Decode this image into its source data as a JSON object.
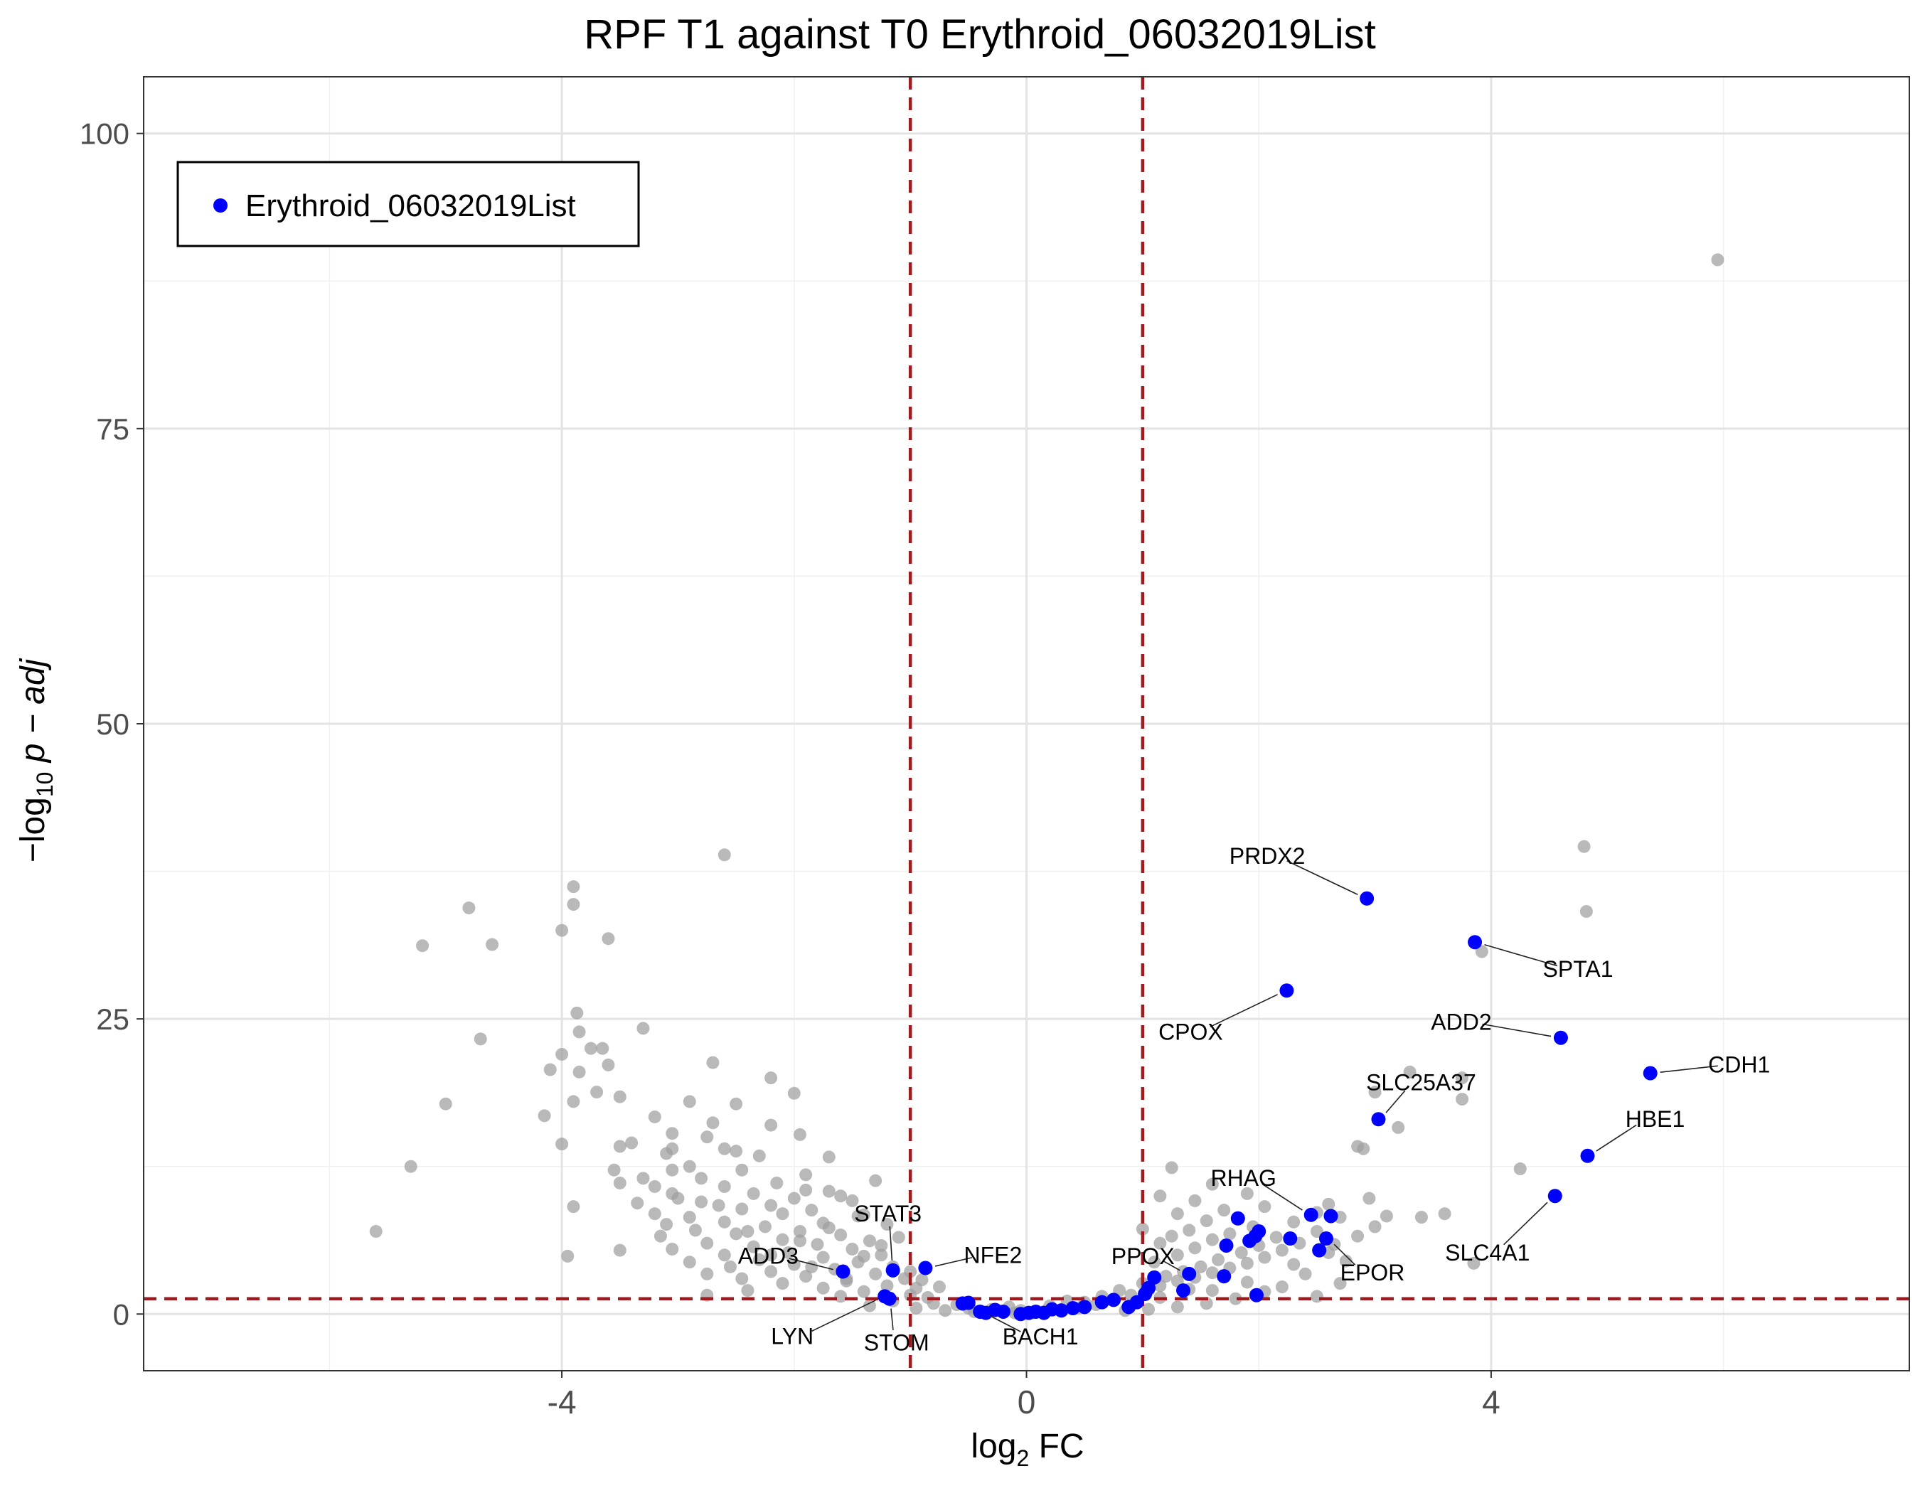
{
  "chart_data": {
    "type": "scatter",
    "title": "RPF T1 against T0 Erythroid_06032019List",
    "xlabel": {
      "main": "log",
      "sub": "2",
      "suffix": " FC"
    },
    "ylabel": {
      "prefix": "−log",
      "sub": "10",
      "mid": " p − ",
      "italic": "adj"
    },
    "xlim": [
      -7.6,
      7.6
    ],
    "ylim": [
      -4.8,
      104.8
    ],
    "x_ticks": [
      -4,
      0,
      4
    ],
    "x_tick_labels": [
      "-4",
      "0",
      "4"
    ],
    "y_ticks": [
      0,
      25,
      50,
      75,
      100
    ],
    "y_tick_labels": [
      "0",
      "25",
      "50",
      "75",
      "100"
    ],
    "grid": true,
    "thresholds": {
      "vertical": [
        -1,
        1
      ],
      "horizontal": 1.3,
      "color": "#9e1b1f"
    },
    "legend": {
      "position": "top-left",
      "entries": [
        {
          "label": "Erythroid_06032019List",
          "color": "#0000ff"
        }
      ]
    },
    "series": [
      {
        "role": "background",
        "color": "#9e9e9e",
        "points": [
          [
            5.95,
            89.3
          ],
          [
            -2.6,
            38.9
          ],
          [
            4.8,
            39.6
          ],
          [
            -3.9,
            36.2
          ],
          [
            -3.9,
            34.7
          ],
          [
            -4.8,
            34.4
          ],
          [
            -4.0,
            32.5
          ],
          [
            -3.6,
            31.8
          ],
          [
            -5.2,
            31.2
          ],
          [
            -4.6,
            31.3
          ],
          [
            4.82,
            34.1
          ],
          [
            3.92,
            30.7
          ],
          [
            -3.87,
            25.5
          ],
          [
            -3.3,
            24.2
          ],
          [
            -3.85,
            23.9
          ],
          [
            -4.7,
            23.3
          ],
          [
            -3.75,
            22.5
          ],
          [
            -3.65,
            22.5
          ],
          [
            -4.0,
            22.0
          ],
          [
            -3.6,
            21.1
          ],
          [
            -2.7,
            21.3
          ],
          [
            -3.85,
            20.5
          ],
          [
            -4.1,
            20.7
          ],
          [
            -3.7,
            18.8
          ],
          [
            -2.2,
            20.0
          ],
          [
            -3.5,
            18.4
          ],
          [
            -2.0,
            18.7
          ],
          [
            -3.9,
            18.0
          ],
          [
            -5.0,
            17.8
          ],
          [
            -2.9,
            18.0
          ],
          [
            -2.5,
            17.8
          ],
          [
            -4.15,
            16.8
          ],
          [
            -3.2,
            16.7
          ],
          [
            -2.7,
            16.2
          ],
          [
            -2.2,
            16.0
          ],
          [
            -3.05,
            15.3
          ],
          [
            -1.95,
            15.2
          ],
          [
            -2.75,
            15.0
          ],
          [
            -3.4,
            14.5
          ],
          [
            -3.05,
            14.0
          ],
          [
            -2.6,
            14.0
          ],
          [
            -4.0,
            14.4
          ],
          [
            -3.5,
            14.2
          ],
          [
            -2.5,
            13.8
          ],
          [
            -3.1,
            13.6
          ],
          [
            -1.7,
            13.3
          ],
          [
            -2.3,
            13.4
          ],
          [
            -3.05,
            12.2
          ],
          [
            -5.3,
            12.5
          ],
          [
            -2.45,
            12.2
          ],
          [
            -3.3,
            11.5
          ],
          [
            -1.9,
            11.8
          ],
          [
            -2.8,
            11.5
          ],
          [
            -3.5,
            11.1
          ],
          [
            -2.15,
            11.1
          ],
          [
            -1.3,
            11.3
          ],
          [
            -2.6,
            10.8
          ],
          [
            -1.9,
            10.5
          ],
          [
            -3.05,
            10.2
          ],
          [
            -2.35,
            10.2
          ],
          [
            -1.6,
            10.0
          ],
          [
            -2.0,
            9.8
          ],
          [
            -2.8,
            9.5
          ],
          [
            -3.35,
            9.4
          ],
          [
            -1.5,
            9.6
          ],
          [
            -3.9,
            9.1
          ],
          [
            -2.45,
            8.9
          ],
          [
            -1.85,
            8.8
          ],
          [
            -3.2,
            8.5
          ],
          [
            -2.1,
            8.5
          ],
          [
            -2.9,
            8.2
          ],
          [
            -1.45,
            8.3
          ],
          [
            -2.6,
            7.8
          ],
          [
            -1.75,
            7.7
          ],
          [
            -3.1,
            7.6
          ],
          [
            -2.25,
            7.4
          ],
          [
            -1.2,
            7.6
          ],
          [
            -2.85,
            7.1
          ],
          [
            -1.95,
            7.0
          ],
          [
            -5.6,
            7.0
          ],
          [
            -2.5,
            6.8
          ],
          [
            -1.6,
            6.7
          ],
          [
            -3.15,
            6.6
          ],
          [
            -2.1,
            6.3
          ],
          [
            -1.35,
            6.2
          ],
          [
            -2.75,
            6.0
          ],
          [
            -1.8,
            5.9
          ],
          [
            -2.35,
            5.7
          ],
          [
            -3.05,
            5.5
          ],
          [
            -1.5,
            5.5
          ],
          [
            -3.5,
            5.4
          ],
          [
            -2.05,
            5.2
          ],
          [
            -2.6,
            5.0
          ],
          [
            -3.95,
            4.9
          ],
          [
            -1.25,
            5.0
          ],
          [
            -1.75,
            4.8
          ],
          [
            -2.3,
            4.6
          ],
          [
            -2.9,
            4.4
          ],
          [
            -1.45,
            4.4
          ],
          [
            -2.0,
            4.2
          ],
          [
            -2.55,
            4.0
          ],
          [
            -1.15,
            4.0
          ],
          [
            -1.65,
            3.8
          ],
          [
            -2.2,
            3.6
          ],
          [
            -2.75,
            3.4
          ],
          [
            -1.3,
            3.4
          ],
          [
            -1.9,
            3.2
          ],
          [
            -2.45,
            3.0
          ],
          [
            -1.05,
            3.0
          ],
          [
            -1.55,
            2.8
          ],
          [
            -2.1,
            2.6
          ],
          [
            -1.2,
            2.4
          ],
          [
            -1.75,
            2.2
          ],
          [
            -2.4,
            2.0
          ],
          [
            -0.95,
            2.2
          ],
          [
            -1.4,
            1.9
          ],
          [
            -2.75,
            1.6
          ],
          [
            -1.0,
            1.6
          ],
          [
            -1.6,
            1.5
          ],
          [
            -0.85,
            1.4
          ],
          [
            -1.15,
            1.1
          ],
          [
            -0.8,
            0.9
          ],
          [
            -1.35,
            0.7
          ],
          [
            -0.6,
            0.8
          ],
          [
            -0.95,
            0.5
          ],
          [
            -0.5,
            0.5
          ],
          [
            -0.7,
            0.3
          ],
          [
            -0.3,
            0.4
          ],
          [
            -0.45,
            0.2
          ],
          [
            -0.2,
            0.15
          ],
          [
            -0.1,
            0.1
          ],
          [
            0.05,
            0.1
          ],
          [
            -0.05,
            0.3
          ],
          [
            0.15,
            0.2
          ],
          [
            -0.15,
            0.6
          ],
          [
            0.3,
            0.4
          ],
          [
            0.45,
            0.5
          ],
          [
            0.2,
            0.7
          ],
          [
            0.6,
            0.8
          ],
          [
            0.5,
            1.0
          ],
          [
            0.75,
            1.2
          ],
          [
            0.35,
            1.1
          ],
          [
            0.9,
            1.6
          ],
          [
            0.65,
            1.5
          ],
          [
            1.05,
            2.0
          ],
          [
            0.8,
            2.0
          ],
          [
            1.15,
            2.4
          ],
          [
            1.3,
            2.8
          ],
          [
            1.0,
            2.6
          ],
          [
            1.45,
            3.1
          ],
          [
            1.2,
            3.2
          ],
          [
            1.6,
            3.5
          ],
          [
            1.35,
            3.6
          ],
          [
            1.75,
            3.9
          ],
          [
            1.5,
            4.0
          ],
          [
            1.9,
            4.3
          ],
          [
            1.1,
            4.4
          ],
          [
            1.65,
            4.6
          ],
          [
            2.05,
            4.8
          ],
          [
            1.3,
            5.0
          ],
          [
            1.85,
            5.2
          ],
          [
            2.2,
            5.4
          ],
          [
            1.45,
            5.6
          ],
          [
            2.0,
            5.8
          ],
          [
            1.15,
            6.0
          ],
          [
            2.35,
            6.0
          ],
          [
            1.6,
            6.3
          ],
          [
            1.25,
            6.6
          ],
          [
            2.15,
            6.5
          ],
          [
            1.75,
            6.8
          ],
          [
            1.4,
            7.1
          ],
          [
            2.5,
            7.0
          ],
          [
            1.95,
            7.4
          ],
          [
            1.0,
            7.2
          ],
          [
            2.3,
            7.8
          ],
          [
            1.55,
            7.9
          ],
          [
            1.3,
            8.5
          ],
          [
            2.7,
            8.2
          ],
          [
            1.7,
            8.8
          ],
          [
            2.05,
            9.1
          ],
          [
            1.45,
            9.6
          ],
          [
            1.9,
            10.2
          ],
          [
            1.15,
            10.0
          ],
          [
            2.6,
            9.3
          ],
          [
            1.6,
            11.0
          ],
          [
            1.25,
            12.4
          ],
          [
            2.95,
            9.8
          ],
          [
            3.1,
            8.3
          ],
          [
            3.4,
            8.2
          ],
          [
            3.6,
            8.5
          ],
          [
            2.85,
            14.2
          ],
          [
            2.9,
            14.0
          ],
          [
            3.0,
            18.8
          ],
          [
            3.3,
            20.5
          ],
          [
            3.75,
            18.2
          ],
          [
            3.75,
            20.0
          ],
          [
            3.2,
            15.8
          ],
          [
            4.25,
            12.3
          ],
          [
            3.85,
            4.3
          ],
          [
            2.6,
            5.2
          ],
          [
            2.75,
            4.5
          ],
          [
            2.4,
            3.4
          ],
          [
            2.7,
            2.6
          ],
          [
            2.2,
            2.3
          ],
          [
            2.05,
            1.9
          ],
          [
            1.8,
            1.3
          ],
          [
            1.55,
            0.9
          ],
          [
            1.3,
            0.6
          ],
          [
            1.05,
            0.4
          ],
          [
            0.85,
            0.3
          ],
          [
            1.6,
            2.0
          ],
          [
            2.5,
            1.5
          ],
          [
            1.9,
            2.7
          ],
          [
            2.3,
            4.2
          ],
          [
            2.85,
            6.6
          ],
          [
            3.0,
            7.4
          ],
          [
            2.5,
            8.6
          ],
          [
            2.65,
            5.9
          ],
          [
            1.15,
            1.4
          ],
          [
            1.4,
            2.1
          ],
          [
            -0.9,
            2.9
          ],
          [
            -1.0,
            3.6
          ],
          [
            -0.75,
            2.3
          ],
          [
            -1.4,
            4.9
          ],
          [
            -1.25,
            5.8
          ],
          [
            -1.1,
            6.5
          ],
          [
            -1.55,
            3.0
          ],
          [
            -1.85,
            4.0
          ],
          [
            -2.2,
            5.0
          ],
          [
            -1.95,
            6.2
          ],
          [
            -2.4,
            7.0
          ],
          [
            -2.65,
            9.2
          ],
          [
            -3.0,
            9.8
          ],
          [
            -1.7,
            7.3
          ],
          [
            -1.4,
            8.4
          ],
          [
            -2.9,
            12.5
          ],
          [
            -1.7,
            10.4
          ],
          [
            -2.2,
            9.2
          ],
          [
            -3.2,
            10.8
          ],
          [
            -3.55,
            12.2
          ]
        ]
      },
      {
        "name": "Erythroid_06032019List",
        "color": "#0000ff",
        "points": [
          {
            "x": 2.93,
            "y": 35.2,
            "label": "PRDX2"
          },
          {
            "x": 3.86,
            "y": 31.5,
            "label": "SPTA1"
          },
          {
            "x": 2.24,
            "y": 27.4,
            "label": "CPOX"
          },
          {
            "x": 4.6,
            "y": 23.4,
            "label": "ADD2"
          },
          {
            "x": 5.37,
            "y": 20.4,
            "label": "CDH1"
          },
          {
            "x": 3.03,
            "y": 16.5,
            "label": "SLC25A37"
          },
          {
            "x": 4.83,
            "y": 13.4,
            "label": "HBE1"
          },
          {
            "x": 4.55,
            "y": 10.0,
            "label": "SLC4A1"
          },
          {
            "x": 2.45,
            "y": 8.4,
            "label": "RHAG"
          },
          {
            "x": 2.58,
            "y": 6.4,
            "label": "EPOR"
          },
          {
            "x": 1.4,
            "y": 3.4,
            "label": "PPOX"
          },
          {
            "x": -1.15,
            "y": 3.7,
            "label": "STAT3"
          },
          {
            "x": -0.87,
            "y": 3.9,
            "label": "NFE2"
          },
          {
            "x": -1.58,
            "y": 3.6,
            "label": "ADD3"
          },
          {
            "x": -1.22,
            "y": 1.5,
            "label": "LYN"
          },
          {
            "x": -1.18,
            "y": 1.3,
            "label": "STOM"
          },
          {
            "x": -0.4,
            "y": 0.2,
            "label": "BACH1"
          },
          {
            "x": 2.62,
            "y": 8.3
          },
          {
            "x": 2.52,
            "y": 5.4
          },
          {
            "x": 2.27,
            "y": 6.4
          },
          {
            "x": 1.82,
            "y": 8.1
          },
          {
            "x": 1.72,
            "y": 5.8
          },
          {
            "x": 1.92,
            "y": 6.2
          },
          {
            "x": 2.0,
            "y": 7.0
          },
          {
            "x": 1.97,
            "y": 6.6
          },
          {
            "x": 1.7,
            "y": 3.2
          },
          {
            "x": 1.98,
            "y": 1.6
          },
          {
            "x": 1.35,
            "y": 2.0
          },
          {
            "x": 1.1,
            "y": 3.1
          },
          {
            "x": 1.05,
            "y": 2.2
          },
          {
            "x": 1.02,
            "y": 1.7
          },
          {
            "x": 0.95,
            "y": 1.0
          },
          {
            "x": 0.88,
            "y": 0.6
          },
          {
            "x": 0.75,
            "y": 1.2
          },
          {
            "x": 0.65,
            "y": 1.0
          },
          {
            "x": 0.5,
            "y": 0.6
          },
          {
            "x": 0.4,
            "y": 0.5
          },
          {
            "x": 0.3,
            "y": 0.3
          },
          {
            "x": 0.22,
            "y": 0.4
          },
          {
            "x": 0.15,
            "y": 0.1
          },
          {
            "x": 0.08,
            "y": 0.2
          },
          {
            "x": 0.02,
            "y": 0.1
          },
          {
            "x": -0.05,
            "y": 0.0
          },
          {
            "x": -0.2,
            "y": 0.2
          },
          {
            "x": -0.27,
            "y": 0.35
          },
          {
            "x": -0.35,
            "y": 0.1
          },
          {
            "x": -0.55,
            "y": 0.9
          },
          {
            "x": -0.5,
            "y": 0.95
          }
        ]
      }
    ]
  }
}
